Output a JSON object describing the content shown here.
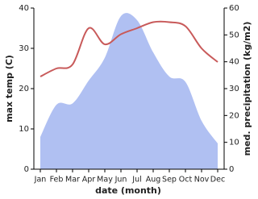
{
  "chart_data": {
    "type": "line",
    "x_label": "date (month)",
    "y_label": "max temp (C)",
    "y2_label": "med. precipitation (kg/m2)",
    "categories": [
      "Jan",
      "Feb",
      "Mar",
      "Apr",
      "May",
      "Jun",
      "Jul",
      "Aug",
      "Sep",
      "Oct",
      "Nov",
      "Dec"
    ],
    "series": [
      {
        "type": "area",
        "axis": "y2",
        "color": "#b0c0f2",
        "values": [
          12,
          24,
          24.5,
          33,
          41.5,
          57,
          55.5,
          43.5,
          34.5,
          32.5,
          18,
          9.6
        ]
      },
      {
        "type": "line",
        "color": "#c85a5a",
        "values": [
          23,
          25,
          26,
          35,
          31,
          33.5,
          35,
          36.5,
          36.5,
          35.5,
          30,
          26.6
        ]
      }
    ],
    "ylim": [
      0,
      40
    ],
    "yticks": [
      0,
      10,
      20,
      30,
      40
    ],
    "y2lim": [
      0,
      60
    ],
    "y2ticks": [
      0,
      10,
      20,
      30,
      40,
      50,
      60
    ]
  }
}
